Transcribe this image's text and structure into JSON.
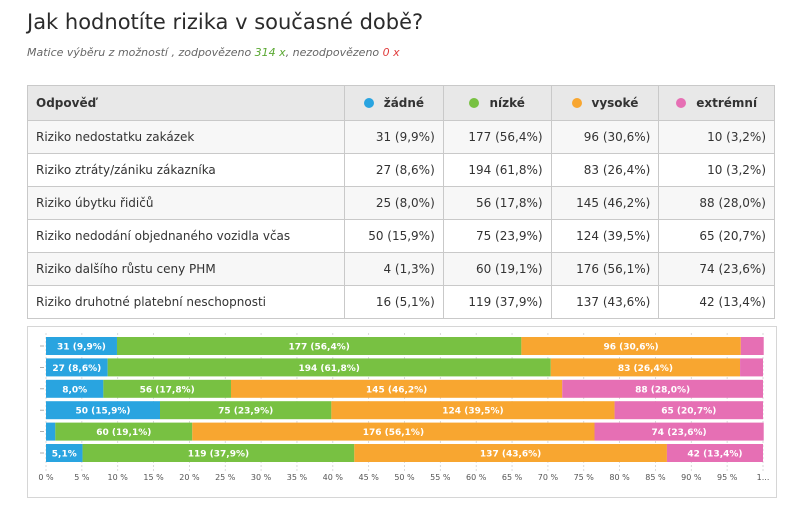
{
  "title": "Jak hodnotíte rizika v současné době?",
  "subtitle": {
    "prefix": "Matice výběru z možností , zodpovězeno ",
    "answered": "314 x",
    "middle": ", nezodpovězeno ",
    "unanswered": "0 x"
  },
  "table": {
    "header_first": "Odpověď",
    "columns": [
      "žádné",
      "nízké",
      "vysoké",
      "extrémní"
    ],
    "rows": [
      {
        "label": "Riziko nedostatku zakázek",
        "cells": [
          "31 (9,9%)",
          "177 (56,4%)",
          "96 (30,6%)",
          "10 (3,2%)"
        ]
      },
      {
        "label": "Riziko ztráty/zániku zákazníka",
        "cells": [
          "27 (8,6%)",
          "194 (61,8%)",
          "83 (26,4%)",
          "10 (3,2%)"
        ]
      },
      {
        "label": "Riziko úbytku řidičů",
        "cells": [
          "25 (8,0%)",
          "56 (17,8%)",
          "145 (46,2%)",
          "88 (28,0%)"
        ]
      },
      {
        "label": "Riziko nedodání objednaného vozidla včas",
        "cells": [
          "50 (15,9%)",
          "75 (23,9%)",
          "124 (39,5%)",
          "65 (20,7%)"
        ]
      },
      {
        "label": "Riziko dalšího růstu ceny PHM",
        "cells": [
          "4 (1,3%)",
          "60 (19,1%)",
          "176 (56,1%)",
          "74 (23,6%)"
        ]
      },
      {
        "label": "Riziko druhotné platební neschopnosti",
        "cells": [
          "16 (5,1%)",
          "119 (37,9%)",
          "137 (43,6%)",
          "42 (13,4%)"
        ]
      }
    ]
  },
  "colors": {
    "žádné": "#29a4e0",
    "nízké": "#78c142",
    "vysoké": "#f8a630",
    "extrémní": "#e66fb4"
  },
  "chart_data": {
    "type": "bar",
    "orientation": "horizontal-stacked-percent",
    "categories": [
      "Riziko nedostatku zakázek",
      "Riziko ztráty/zániku zákazníka",
      "Riziko úbytku řidičů",
      "Riziko nedodání objednaného vozidla včas",
      "Riziko dalšího růstu ceny PHM",
      "Riziko druhotné platební neschopnosti"
    ],
    "series": [
      {
        "name": "žádné",
        "values": [
          9.9,
          8.6,
          8.0,
          15.9,
          1.3,
          5.1
        ],
        "labels": [
          "31 (9,9%)",
          "27 (8,6%)",
          "8,0%",
          "50 (15,9%)",
          "",
          "5,1%"
        ]
      },
      {
        "name": "nízké",
        "values": [
          56.4,
          61.8,
          17.8,
          23.9,
          19.1,
          37.9
        ],
        "labels": [
          "177 (56,4%)",
          "194 (61,8%)",
          "56 (17,8%)",
          "75 (23,9%)",
          "60 (19,1%)",
          "119 (37,9%)"
        ]
      },
      {
        "name": "vysoké",
        "values": [
          30.6,
          26.4,
          46.2,
          39.5,
          56.1,
          43.6
        ],
        "labels": [
          "96 (30,6%)",
          "83 (26,4%)",
          "145 (46,2%)",
          "124 (39,5%)",
          "176 (56,1%)",
          "137 (43,6%)"
        ]
      },
      {
        "name": "extrémní",
        "values": [
          3.2,
          3.2,
          28.0,
          20.7,
          23.6,
          13.4
        ],
        "labels": [
          "",
          "",
          "88 (28,0%)",
          "65 (20,7%)",
          "74 (23,6%)",
          "42 (13,4%)"
        ]
      }
    ],
    "xlim": [
      0,
      100
    ],
    "xticks": [
      "0 %",
      "5 %",
      "10 %",
      "15 %",
      "20 %",
      "25 %",
      "30 %",
      "35 %",
      "40 %",
      "45 %",
      "50 %",
      "55 %",
      "60 %",
      "65 %",
      "70 %",
      "75 %",
      "80 %",
      "85 %",
      "90 %",
      "95 %",
      "1..."
    ],
    "grid": true
  }
}
